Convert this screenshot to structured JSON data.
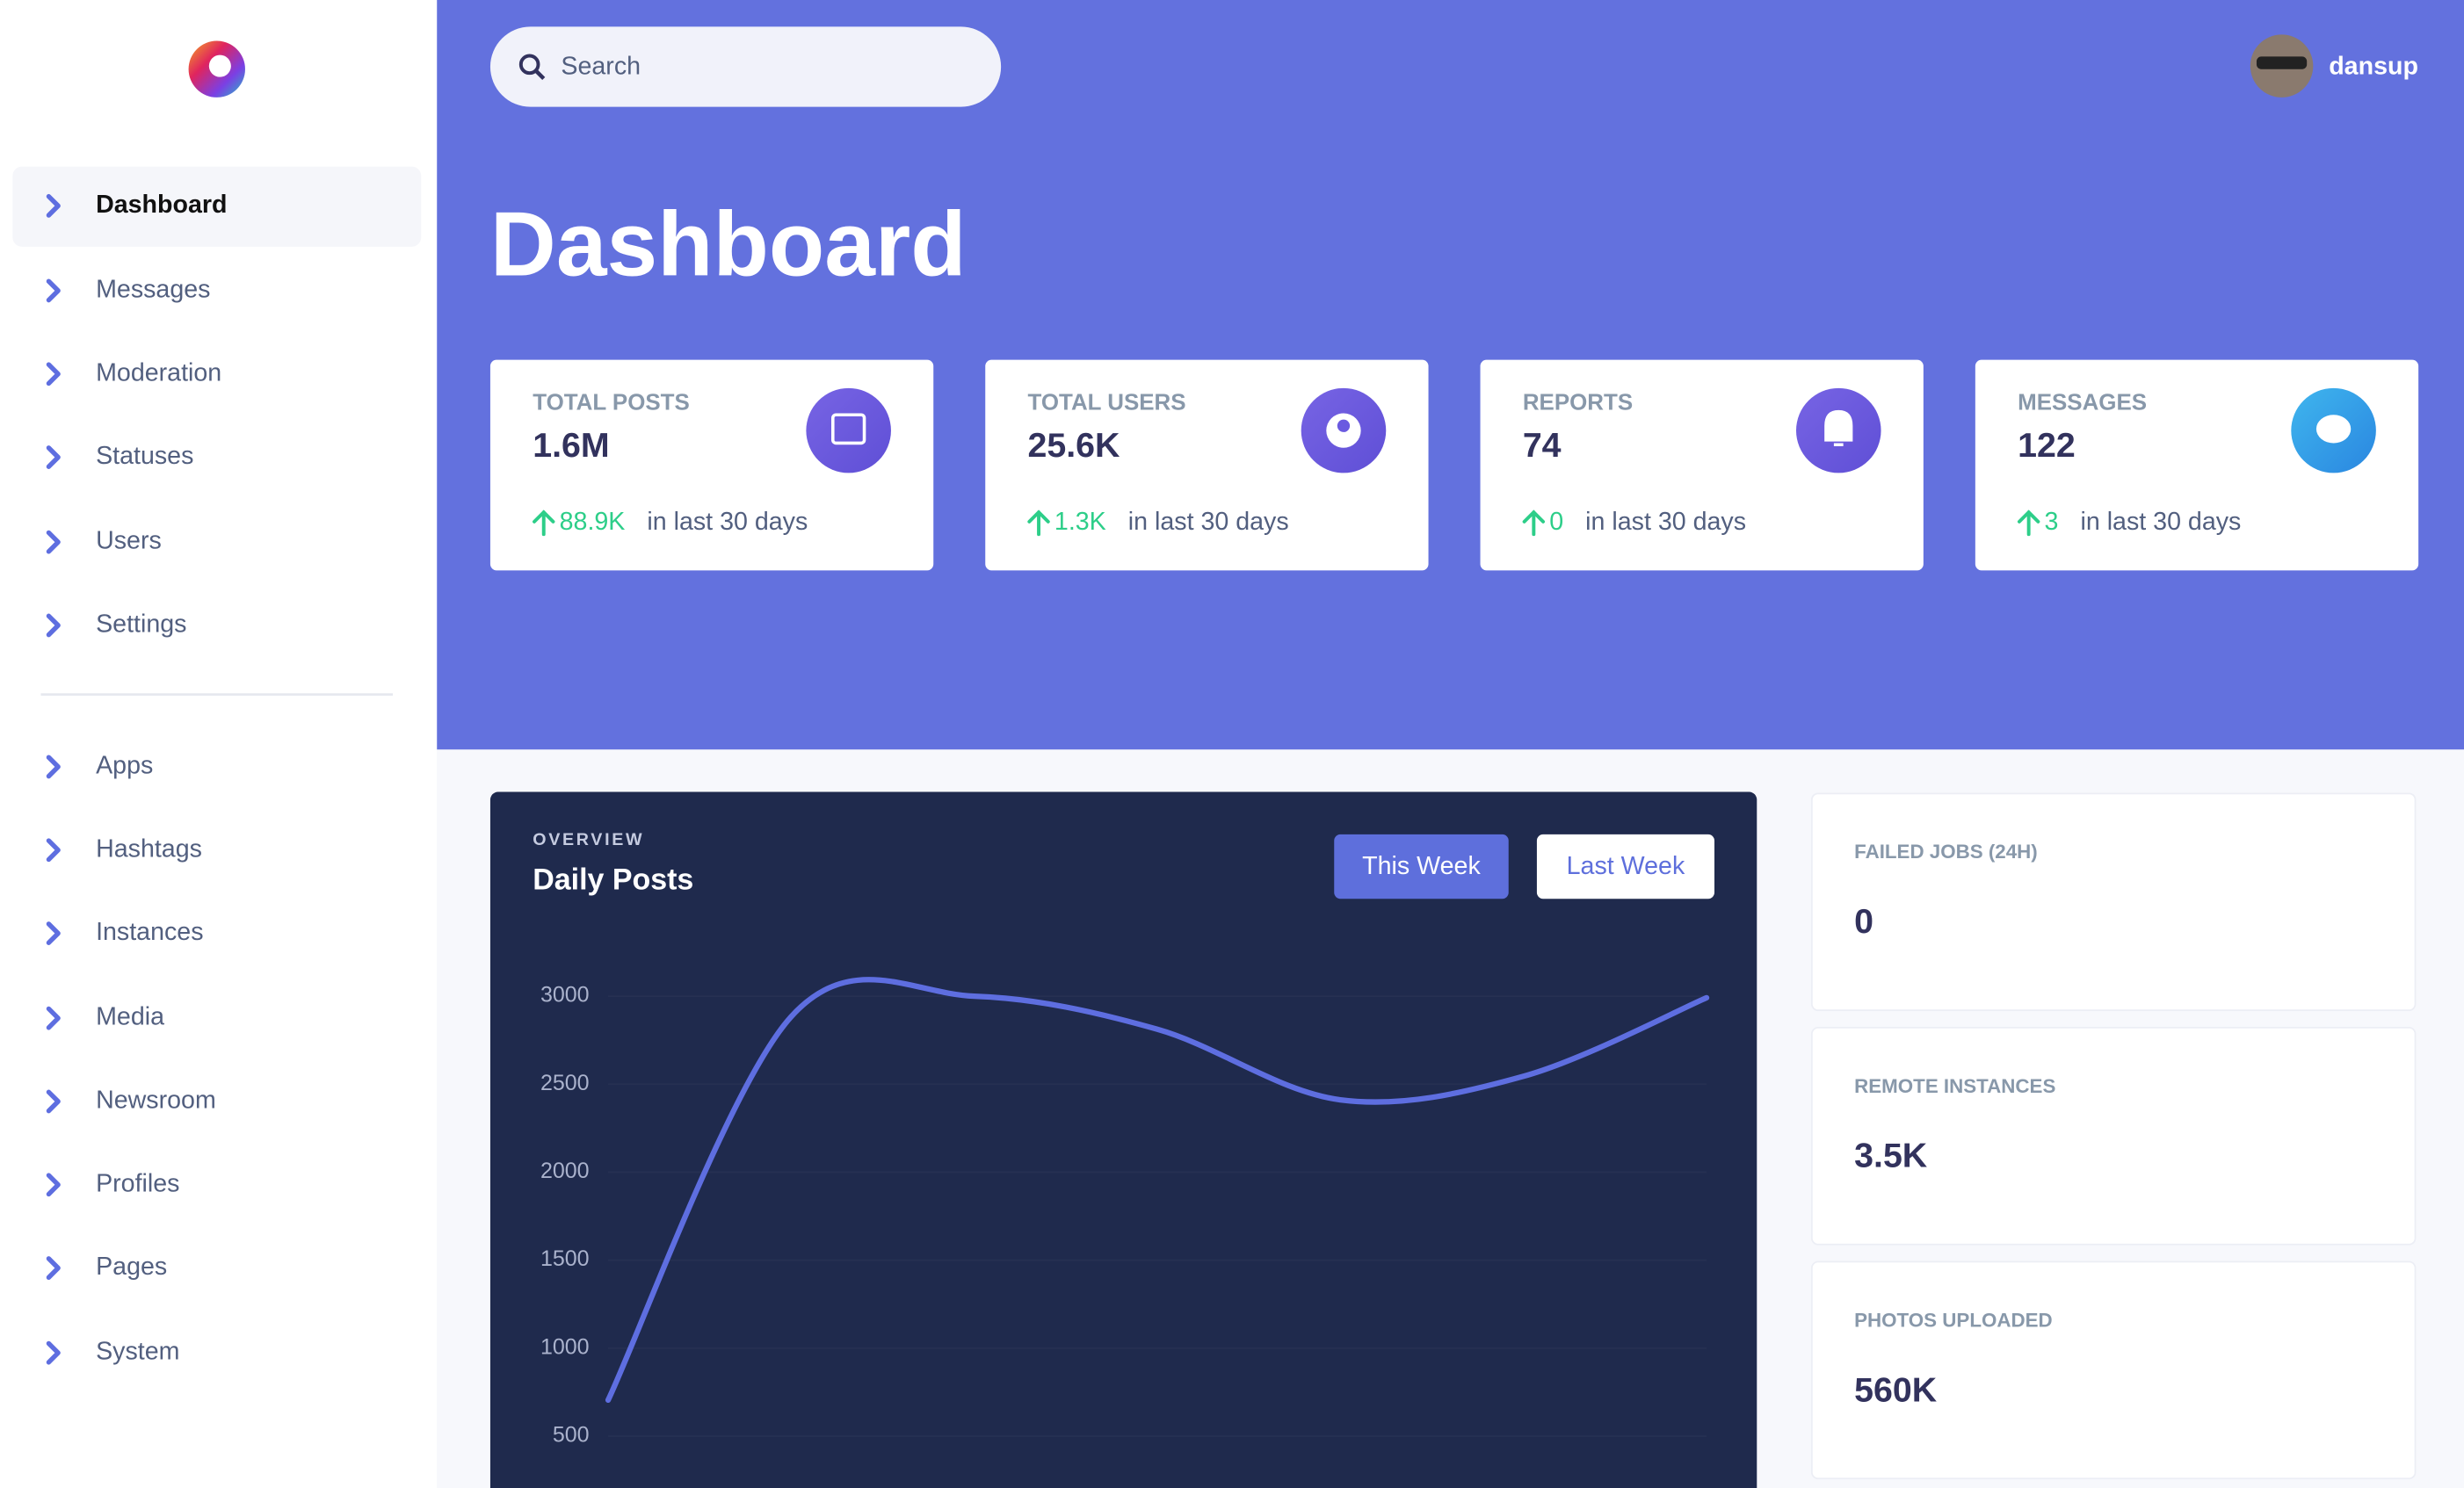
{
  "sidebar": {
    "nav": [
      "Dashboard",
      "Messages",
      "Moderation",
      "Statuses",
      "Users",
      "Settings"
    ],
    "nav2": [
      "Apps",
      "Hashtags",
      "Instances",
      "Media",
      "Newsroom",
      "Profiles",
      "Pages",
      "System"
    ]
  },
  "header": {
    "search_placeholder": "Search",
    "username": "dansup"
  },
  "page_title": "Dashboard",
  "stats": [
    {
      "label": "TOTAL POSTS",
      "value": "1.6M",
      "change": "88.9K",
      "period": "in last 30 days"
    },
    {
      "label": "TOTAL USERS",
      "value": "25.6K",
      "change": "1.3K",
      "period": "in last 30 days"
    },
    {
      "label": "REPORTS",
      "value": "74",
      "change": "0",
      "period": "in last 30 days"
    },
    {
      "label": "MESSAGES",
      "value": "122",
      "change": "3",
      "period": "in last 30 days"
    }
  ],
  "chart_card": {
    "overline": "OVERVIEW",
    "buttons": [
      "This Week",
      "Last Week"
    ]
  },
  "chart_data": {
    "type": "line",
    "title": "Daily Posts",
    "categories": [
      null,
      null,
      null,
      null,
      null,
      null,
      null
    ],
    "values": [
      705,
      2884,
      3000,
      2812,
      2411,
      2545,
      2991
    ],
    "color": "#5e6ee0",
    "ylim": [
      500,
      3000
    ],
    "yticks": [
      500,
      1000,
      1500,
      2000,
      2500,
      3000
    ]
  },
  "side_stats": [
    {
      "label": "FAILED JOBS (24H)",
      "value": "0"
    },
    {
      "label": "REMOTE INSTANCES",
      "value": "3.5K"
    },
    {
      "label": "PHOTOS UPLOADED",
      "value": "560K"
    }
  ]
}
